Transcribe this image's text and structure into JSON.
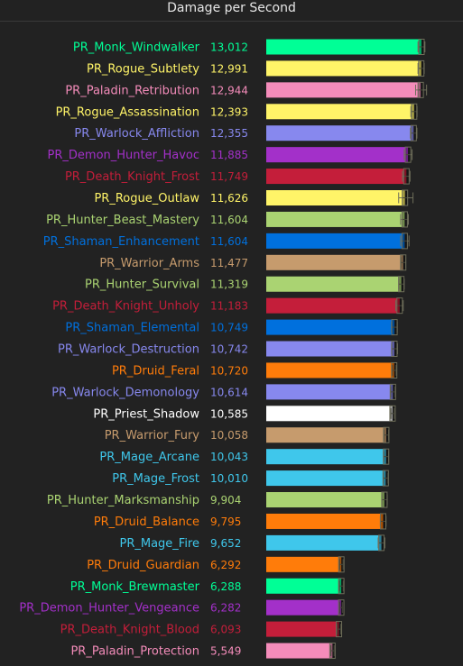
{
  "chart_data": {
    "type": "bar",
    "orientation": "horizontal",
    "title": "Damage per Second",
    "xlabel": "",
    "ylabel": "",
    "xlim": [
      0,
      13600
    ],
    "grid": false,
    "legend": "none",
    "categories": [
      "PR_Monk_Windwalker",
      "PR_Rogue_Subtlety",
      "PR_Paladin_Retribution",
      "PR_Rogue_Assassination",
      "PR_Warlock_Affliction",
      "PR_Demon_Hunter_Havoc",
      "PR_Death_Knight_Frost",
      "PR_Rogue_Outlaw",
      "PR_Hunter_Beast_Mastery",
      "PR_Shaman_Enhancement",
      "PR_Warrior_Arms",
      "PR_Hunter_Survival",
      "PR_Death_Knight_Unholy",
      "PR_Shaman_Elemental",
      "PR_Warlock_Destruction",
      "PR_Druid_Feral",
      "PR_Warlock_Demonology",
      "PR_Priest_Shadow",
      "PR_Warrior_Fury",
      "PR_Mage_Arcane",
      "PR_Mage_Frost",
      "PR_Hunter_Marksmanship",
      "PR_Druid_Balance",
      "PR_Mage_Fire",
      "PR_Druid_Guardian",
      "PR_Monk_Brewmaster",
      "PR_Demon_Hunter_Vengeance",
      "PR_Death_Knight_Blood",
      "PR_Paladin_Protection"
    ],
    "values": [
      13012,
      12991,
      12944,
      12393,
      12355,
      11885,
      11749,
      11626,
      11604,
      11604,
      11477,
      11319,
      11183,
      10749,
      10742,
      10720,
      10614,
      10585,
      10058,
      10043,
      10010,
      9904,
      9795,
      9652,
      6292,
      6288,
      6282,
      6093,
      5549
    ],
    "value_labels": [
      "13,012",
      "12,991",
      "12,944",
      "12,393",
      "12,355",
      "11,885",
      "11,749",
      "11,626",
      "11,604",
      "11,604",
      "11,477",
      "11,319",
      "11,183",
      "10,749",
      "10,742",
      "10,720",
      "10,614",
      "10,585",
      "10,058",
      "10,043",
      "10,010",
      "9,904",
      "9,795",
      "9,652",
      "6,292",
      "6,288",
      "6,282",
      "6,093",
      "5,549"
    ],
    "error_low": [
      12720,
      12720,
      12520,
      12120,
      12080,
      11560,
      11420,
      11100,
      11260,
      11260,
      11280,
      11100,
      10860,
      10500,
      10500,
      10580,
      10430,
      10450,
      9870,
      9850,
      9810,
      9680,
      9560,
      9380,
      6150,
      6130,
      6160,
      5960,
      5420
    ],
    "error_high": [
      13300,
      13240,
      13440,
      12640,
      12630,
      12220,
      12050,
      12300,
      11910,
      11970,
      11690,
      11560,
      11480,
      10980,
      11000,
      10880,
      10790,
      10720,
      10250,
      10250,
      10200,
      10140,
      10040,
      9940,
      6440,
      6450,
      6380,
      6240,
      5690
    ],
    "colors": [
      "#00ff96",
      "#fff468",
      "#f48cba",
      "#fff468",
      "#8788ee",
      "#a330c9",
      "#c41e3a",
      "#fff468",
      "#aad372",
      "#0070dd",
      "#c69b6d",
      "#aad372",
      "#c41e3a",
      "#0070dd",
      "#8788ee",
      "#ff7c0a",
      "#8788ee",
      "#ffffff",
      "#c69b6d",
      "#3fc7eb",
      "#3fc7eb",
      "#aad372",
      "#ff7c0a",
      "#3fc7eb",
      "#ff7c0a",
      "#00ff96",
      "#a330c9",
      "#c41e3a",
      "#f48cba"
    ],
    "label_colors": [
      "#00ff96",
      "#fff468",
      "#f48cba",
      "#fff468",
      "#8788ee",
      "#a330c9",
      "#c41e3a",
      "#fff468",
      "#aad372",
      "#0070dd",
      "#c69b6d",
      "#aad372",
      "#c41e3a",
      "#0070dd",
      "#8788ee",
      "#ff7c0a",
      "#8788ee",
      "#ffffff",
      "#c69b6d",
      "#3fc7eb",
      "#3fc7eb",
      "#aad372",
      "#ff7c0a",
      "#3fc7eb",
      "#ff7c0a",
      "#00ff96",
      "#a330c9",
      "#c41e3a",
      "#f48cba"
    ],
    "background": "#222222"
  }
}
